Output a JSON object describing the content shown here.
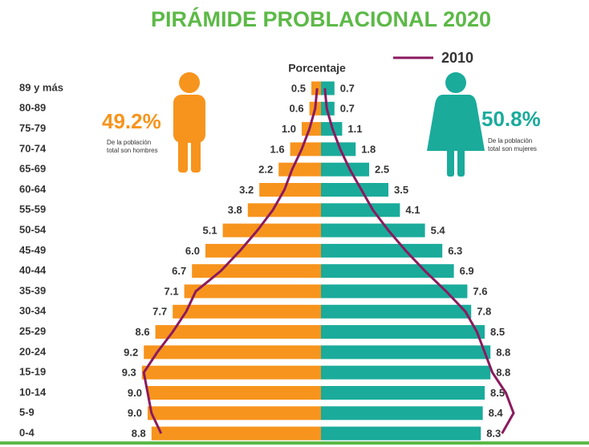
{
  "chart_data": {
    "type": "pyramid",
    "title": "PIRÁMIDE PROBLACIONAL 2020",
    "axis_label": "Porcentaje",
    "categories": [
      "89 y más",
      "80-89",
      "75-79",
      "70-74",
      "65-69",
      "60-64",
      "55-59",
      "50-54",
      "45-49",
      "40-44",
      "35-39",
      "30-34",
      "25-29",
      "20-24",
      "15-19",
      "10-14",
      "5-9",
      "0-4"
    ],
    "series": [
      {
        "color": "#f7941d",
        "side": "left",
        "values": [
          0.5,
          0.6,
          1.0,
          1.6,
          2.2,
          3.2,
          3.8,
          5.1,
          6.0,
          6.7,
          7.1,
          7.7,
          8.6,
          9.2,
          9.3,
          9.0,
          9.0,
          8.8
        ],
        "value_labels": [
          "0.5",
          "0.6",
          "1.0",
          "1.6",
          "2.2",
          "3.2",
          "3.8",
          "5.1",
          "6.0",
          "6.7",
          "7.1",
          "7.7",
          "8.6",
          "9.2",
          "9.3",
          "9.0",
          "9.0",
          "8.8"
        ]
      },
      {
        "color": "#1aab9b",
        "side": "right",
        "values": [
          0.7,
          0.7,
          1.1,
          1.8,
          2.5,
          3.5,
          4.1,
          5.4,
          6.3,
          6.9,
          7.6,
          7.8,
          8.5,
          8.8,
          8.8,
          8.5,
          8.4,
          8.3
        ],
        "value_labels": [
          "0.7",
          "0.7",
          "1.1",
          "1.8",
          "2.5",
          "3.5",
          "4.1",
          "5.4",
          "6.3",
          "6.9",
          "7.6",
          "7.8",
          "8.5",
          "8.8",
          "8.8",
          "8.5",
          "8.4",
          "8.3"
        ]
      }
    ],
    "line": {
      "name": "2010",
      "color": "#8b1a5e",
      "left": [
        0.2,
        0.3,
        0.6,
        1.0,
        1.5,
        1.9,
        2.5,
        3.3,
        4.2,
        5.2,
        6.5,
        7.0,
        7.7,
        8.5,
        9.2,
        9.0,
        8.8,
        8.3
      ],
      "right": [
        0.2,
        0.3,
        0.6,
        1.0,
        1.5,
        2.1,
        2.7,
        3.5,
        4.4,
        5.4,
        6.5,
        7.5,
        8.1,
        8.5,
        8.9,
        9.6,
        10.0,
        9.4
      ]
    },
    "xlim": [
      0,
      10.5
    ],
    "annotations": {
      "men_share": "49.2%",
      "men_text": [
        "De la población",
        "total son hombres"
      ],
      "women_share": "50.8%",
      "women_text": [
        "De la población",
        "total son mujeres"
      ]
    }
  }
}
